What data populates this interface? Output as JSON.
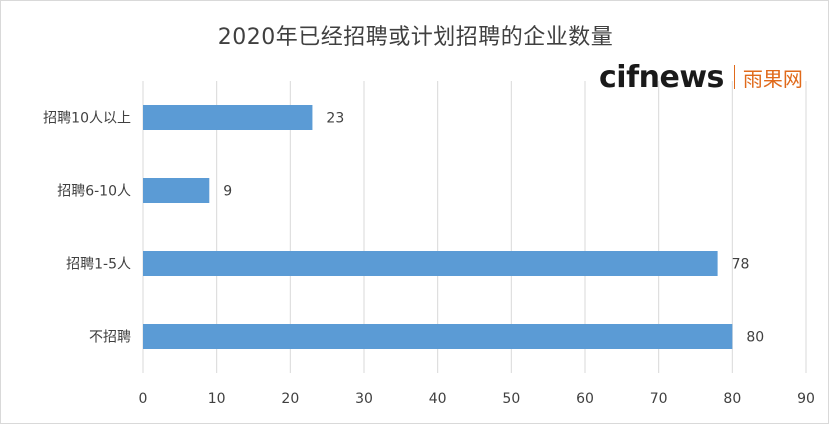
{
  "chart_data": {
    "type": "bar",
    "orientation": "horizontal",
    "title": "2020年已经招聘或计划招聘的企业数量",
    "categories": [
      "招聘10人以上",
      "招聘6-10人",
      "招聘1-5人",
      "不招聘"
    ],
    "values": [
      23,
      9,
      78,
      80
    ],
    "xlim": [
      0,
      90
    ],
    "xticks": [
      0,
      10,
      20,
      30,
      40,
      50,
      60,
      70,
      80,
      90
    ],
    "grid": true,
    "data_labels": true,
    "bar_color": "#5b9bd5"
  },
  "watermark": {
    "brand": "cifnews",
    "brand_cn": "雨果网",
    "accent": "#e06a1b"
  }
}
